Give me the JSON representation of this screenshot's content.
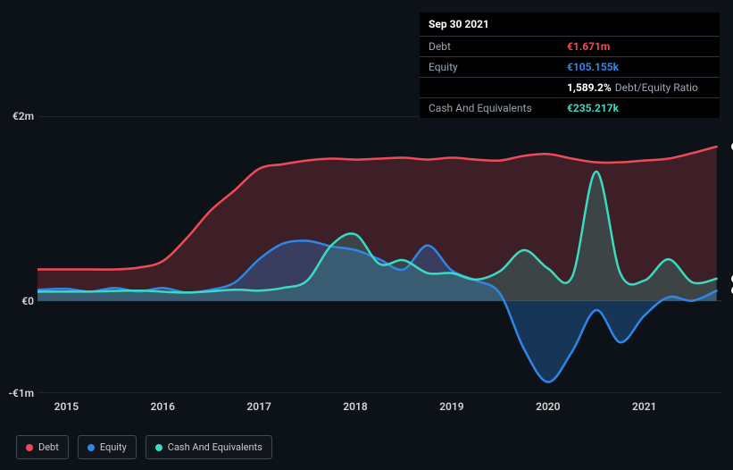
{
  "chart": {
    "type": "area",
    "background_color": "#0d1219",
    "grid_color": "#2a3541",
    "text_color": "#d6d6d6",
    "currency_symbol": "€",
    "x": {
      "min": 2014.7,
      "max": 2021.8,
      "ticks": [
        2015,
        2016,
        2017,
        2018,
        2019,
        2020,
        2021
      ]
    },
    "y": {
      "min": -1,
      "max": 2,
      "ticks": [
        -1,
        0,
        2
      ],
      "tick_labels": [
        "-€1m",
        "€0",
        "€2m"
      ]
    },
    "series": [
      {
        "name": "Debt",
        "color": "#ee4b5a",
        "fill": "rgba(238,75,90,0.22)",
        "line_width": 2.5,
        "points": [
          [
            2014.7,
            0.34
          ],
          [
            2015.25,
            0.34
          ],
          [
            2015.5,
            0.34
          ],
          [
            2015.75,
            0.36
          ],
          [
            2016.0,
            0.43
          ],
          [
            2016.25,
            0.68
          ],
          [
            2016.5,
            0.98
          ],
          [
            2016.75,
            1.2
          ],
          [
            2017.0,
            1.43
          ],
          [
            2017.25,
            1.48
          ],
          [
            2017.5,
            1.52
          ],
          [
            2017.75,
            1.54
          ],
          [
            2018.0,
            1.53
          ],
          [
            2018.25,
            1.54
          ],
          [
            2018.5,
            1.55
          ],
          [
            2018.75,
            1.53
          ],
          [
            2019.0,
            1.55
          ],
          [
            2019.25,
            1.53
          ],
          [
            2019.5,
            1.52
          ],
          [
            2019.75,
            1.57
          ],
          [
            2020.0,
            1.59
          ],
          [
            2020.25,
            1.54
          ],
          [
            2020.5,
            1.5
          ],
          [
            2020.75,
            1.5
          ],
          [
            2021.0,
            1.52
          ],
          [
            2021.25,
            1.54
          ],
          [
            2021.5,
            1.6
          ],
          [
            2021.75,
            1.67
          ]
        ]
      },
      {
        "name": "Equity",
        "color": "#2e87e6",
        "fill": "rgba(46,135,230,0.30)",
        "line_width": 2.5,
        "points": [
          [
            2014.7,
            0.12
          ],
          [
            2015.0,
            0.13
          ],
          [
            2015.25,
            0.1
          ],
          [
            2015.5,
            0.14
          ],
          [
            2015.75,
            0.1
          ],
          [
            2016.0,
            0.14
          ],
          [
            2016.25,
            0.09
          ],
          [
            2016.5,
            0.12
          ],
          [
            2016.75,
            0.2
          ],
          [
            2017.0,
            0.45
          ],
          [
            2017.25,
            0.62
          ],
          [
            2017.5,
            0.65
          ],
          [
            2017.75,
            0.59
          ],
          [
            2018.0,
            0.55
          ],
          [
            2018.25,
            0.45
          ],
          [
            2018.5,
            0.34
          ],
          [
            2018.75,
            0.6
          ],
          [
            2019.0,
            0.33
          ],
          [
            2019.25,
            0.22
          ],
          [
            2019.5,
            0.08
          ],
          [
            2019.75,
            -0.52
          ],
          [
            2020.0,
            -0.88
          ],
          [
            2020.25,
            -0.55
          ],
          [
            2020.5,
            -0.1
          ],
          [
            2020.75,
            -0.45
          ],
          [
            2021.0,
            -0.16
          ],
          [
            2021.25,
            0.04
          ],
          [
            2021.5,
            0.0
          ],
          [
            2021.75,
            0.11
          ]
        ]
      },
      {
        "name": "Cash And Equivalents",
        "color": "#3adbc2",
        "fill": "rgba(58,219,194,0.20)",
        "line_width": 2.5,
        "points": [
          [
            2014.7,
            0.1
          ],
          [
            2015.25,
            0.1
          ],
          [
            2015.75,
            0.11
          ],
          [
            2016.25,
            0.09
          ],
          [
            2016.75,
            0.12
          ],
          [
            2017.0,
            0.11
          ],
          [
            2017.25,
            0.14
          ],
          [
            2017.5,
            0.22
          ],
          [
            2017.75,
            0.6
          ],
          [
            2018.0,
            0.72
          ],
          [
            2018.25,
            0.4
          ],
          [
            2018.5,
            0.44
          ],
          [
            2018.75,
            0.3
          ],
          [
            2019.0,
            0.3
          ],
          [
            2019.25,
            0.23
          ],
          [
            2019.5,
            0.32
          ],
          [
            2019.75,
            0.55
          ],
          [
            2020.0,
            0.35
          ],
          [
            2020.25,
            0.26
          ],
          [
            2020.5,
            1.4
          ],
          [
            2020.75,
            0.3
          ],
          [
            2021.0,
            0.22
          ],
          [
            2021.25,
            0.45
          ],
          [
            2021.5,
            0.2
          ],
          [
            2021.75,
            0.24
          ]
        ]
      }
    ],
    "end_markers": [
      {
        "series": "Debt",
        "x": 2021.78,
        "y": 1.67,
        "color": "#ee4b5a"
      },
      {
        "series": "Equity",
        "x": 2021.78,
        "y": 0.11,
        "color": "#2e87e6"
      },
      {
        "series": "Cash And Equivalents",
        "x": 2021.78,
        "y": 0.24,
        "color": "#3adbc2"
      }
    ]
  },
  "tooltip": {
    "date": "Sep 30 2021",
    "rows": [
      {
        "label": "Debt",
        "value": "€1.671m",
        "color": "#ee4b5a",
        "sub": null
      },
      {
        "label": "Equity",
        "value": "€105.155k",
        "color": "#2e87e6",
        "sub": null
      },
      {
        "label": "",
        "value": "1,589.2%",
        "color": "#ffffff",
        "sub": "Debt/Equity Ratio"
      },
      {
        "label": "Cash And Equivalents",
        "value": "€235.217k",
        "color": "#3adbc2",
        "sub": null
      }
    ]
  },
  "legend": {
    "items": [
      {
        "label": "Debt",
        "color": "#ee4b5a"
      },
      {
        "label": "Equity",
        "color": "#2e87e6"
      },
      {
        "label": "Cash And Equivalents",
        "color": "#3adbc2"
      }
    ]
  }
}
